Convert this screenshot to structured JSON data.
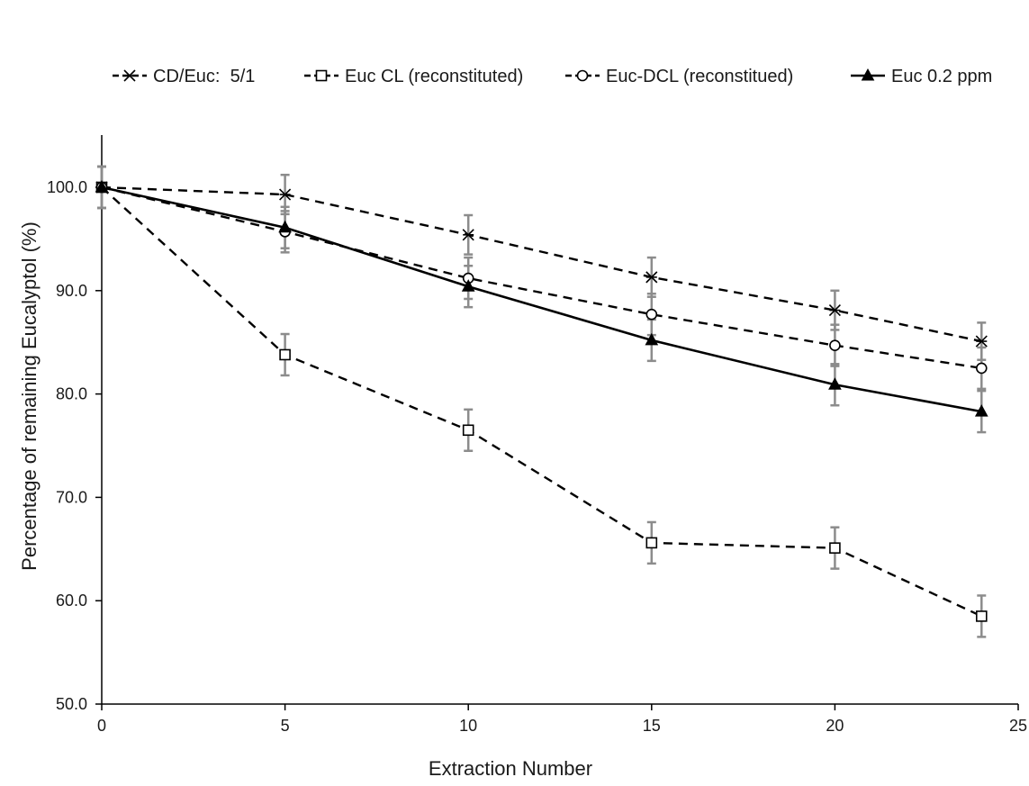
{
  "chart_data": {
    "type": "line",
    "title": "",
    "xlabel": "Extraction Number",
    "ylabel": "Percentage of remaining Eucalyptol (%)",
    "xlim": [
      0,
      25
    ],
    "ylim": [
      50,
      105
    ],
    "x_ticks": [
      "0",
      "5",
      "10",
      "15",
      "20",
      "25"
    ],
    "y_ticks": [
      "50.0",
      "60.0",
      "70.0",
      "80.0",
      "90.0",
      "100.0"
    ],
    "x_tick_values": [
      0,
      5,
      10,
      15,
      20,
      25
    ],
    "y_tick_values": [
      50,
      60,
      70,
      80,
      90,
      100
    ],
    "grid": false,
    "legend_position": "top",
    "x": [
      0,
      5,
      10,
      15,
      20,
      24
    ],
    "series": [
      {
        "name": "CD/Euc:  5/1",
        "marker": "asterisk",
        "dash": true,
        "values": [
          100.0,
          99.3,
          95.4,
          91.3,
          88.1,
          85.1
        ],
        "errors": [
          2.0,
          1.9,
          1.9,
          1.9,
          1.9,
          1.8
        ]
      },
      {
        "name": "Euc CL (reconstituted)",
        "marker": "square",
        "dash": true,
        "values": [
          100.0,
          83.8,
          76.5,
          65.6,
          65.1,
          58.5
        ],
        "errors": [
          2.0,
          2.0,
          2.0,
          2.0,
          2.0,
          2.0
        ]
      },
      {
        "name": "Euc-DCL (reconstitued)",
        "marker": "circle",
        "dash": true,
        "values": [
          100.0,
          95.7,
          91.2,
          87.7,
          84.7,
          82.5
        ],
        "errors": [
          2.0,
          2.0,
          2.0,
          2.0,
          2.0,
          2.0
        ]
      },
      {
        "name": "Euc 0.2 ppm",
        "marker": "triangle",
        "dash": false,
        "values": [
          100.0,
          96.1,
          90.4,
          85.2,
          80.9,
          78.3
        ],
        "errors": [
          2.0,
          2.0,
          2.0,
          2.0,
          2.0,
          2.0
        ]
      }
    ],
    "colors": {
      "line": "#000000",
      "errorbar": "#8c8c8c",
      "axis": "#000000"
    }
  }
}
